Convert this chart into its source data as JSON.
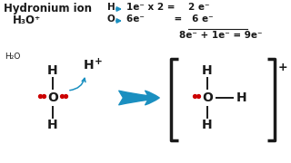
{
  "bg_color": "#ffffff",
  "title_text": "Hydronium ion",
  "formula": "H₃O⁺",
  "text_color": "#1a1a1a",
  "blue_color": "#1a8fc0",
  "red_color": "#cc0000",
  "eq1a": "H ",
  "eq1b": "1e⁻ x 2 =    2 e⁻",
  "eq2a": "O",
  "eq2b": "6e⁻         =   6 e⁻",
  "eq3": "8e⁻ + 1e⁻ = 9e⁻"
}
